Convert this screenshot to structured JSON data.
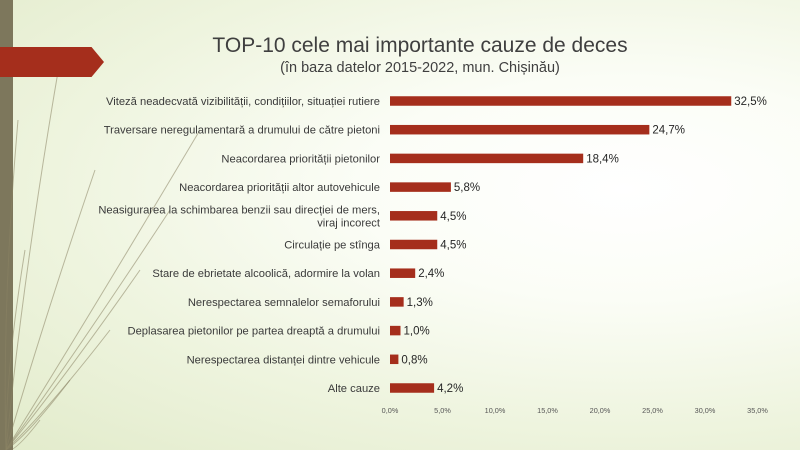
{
  "slide": {
    "title": "TOP-10 cele mai importante cauze de deces",
    "subtitle": "(în baza datelor 2015-2022, mun. Chișinău)"
  },
  "colors": {
    "bar": "#a52e1c",
    "title_arrow": "#a52e1c",
    "left_band": "#7d775c",
    "decor_lines": "#8a8464",
    "background_center": "#ffffff",
    "background_edge": "#e2ebcb"
  },
  "chart_data": {
    "type": "bar",
    "orientation": "horizontal",
    "title": "TOP-10 cele mai importante cauze de deces",
    "subtitle": "(în baza datelor 2015-2022, mun. Chișinău)",
    "xlabel": "",
    "ylabel": "",
    "xlim": [
      0,
      35
    ],
    "grid": false,
    "legend": "none",
    "categories": [
      [
        "Viteză neadecvată vizibilității, condițiilor, situației rutiere"
      ],
      [
        "Traversare neregulamentară a drumului de către pietoni"
      ],
      [
        "Neacordarea priorității pietonilor"
      ],
      [
        "Neacordarea priorității altor autovehicule"
      ],
      [
        "Neasigurarea la schimbarea benzii sau direcției de mers,",
        "viraj incorect"
      ],
      [
        "Circulație pe stînga"
      ],
      [
        "Stare de ebrietate alcoolică, adormire la volan"
      ],
      [
        "Nerespectarea semnalelor semaforului"
      ],
      [
        "Deplasarea pietonilor pe partea dreaptă a drumului"
      ],
      [
        "Nerespectarea distanței dintre vehicule"
      ],
      [
        "Alte cauze"
      ]
    ],
    "values": [
      32.5,
      24.7,
      18.4,
      5.8,
      4.5,
      4.5,
      2.4,
      1.3,
      1.0,
      0.8,
      4.2
    ],
    "data_labels": [
      "32,5%",
      "24,7%",
      "18,4%",
      "5,8%",
      "4,5%",
      "4,5%",
      "2,4%",
      "1,3%",
      "1,0%",
      "0,8%",
      "4,2%"
    ],
    "x_ticks": [
      0,
      5,
      10,
      15,
      20,
      25,
      30,
      35
    ],
    "x_tick_labels": [
      "0,0%",
      "5,0%",
      "10,0%",
      "15,0%",
      "20,0%",
      "25,0%",
      "30,0%",
      "35,0%"
    ]
  }
}
